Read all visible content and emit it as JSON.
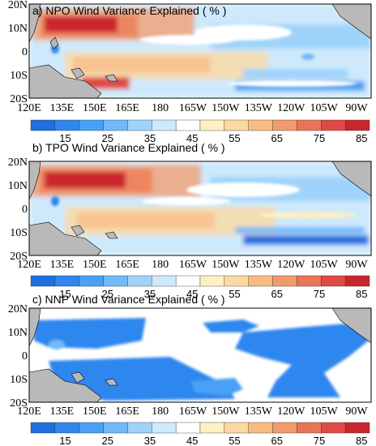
{
  "figure": {
    "colorbar": {
      "colors": [
        "#1e6fe0",
        "#2f86ef",
        "#4aa0f5",
        "#71b9f8",
        "#9fd3fa",
        "#cfe9fc",
        "#ffffff",
        "#fdf0c2",
        "#fbd9a0",
        "#f8bb82",
        "#f29b6a",
        "#ea7458",
        "#df4a45",
        "#c9252d"
      ],
      "tick_values": [
        "15",
        "25",
        "35",
        "45",
        "55",
        "65",
        "75",
        "85"
      ],
      "range": [
        10,
        90
      ],
      "step": 5
    },
    "lon_ticks": [
      "120E",
      "135E",
      "150E",
      "165E",
      "180",
      "165W",
      "150W",
      "135W",
      "120W",
      "105W",
      "90W"
    ],
    "lat_ticks": [
      "20N",
      "10N",
      "0",
      "10S",
      "20S"
    ],
    "land_color": "#b9b9b9"
  },
  "chart_data": [
    {
      "type": "heatmap",
      "title": "a) NPO Wind Variance Explained ( % )",
      "x_range": [
        "120E",
        "80W"
      ],
      "y_range": [
        "20S",
        "20N"
      ],
      "regions": [
        {
          "name": "northwest",
          "lon": [
            "125E",
            "175W"
          ],
          "lat": [
            "7N",
            "18N"
          ],
          "value": 80
        },
        {
          "name": "north-central",
          "lon": [
            "175W",
            "130W"
          ],
          "lat": [
            "10N",
            "17N"
          ],
          "value": 45
        },
        {
          "name": "equatorial-west",
          "lon": [
            "140E",
            "160W"
          ],
          "lat": [
            "3S",
            "10S"
          ],
          "value": 72
        },
        {
          "name": "equatorial-band",
          "lon": [
            "160W",
            "90W"
          ],
          "lat": [
            "2N",
            "8S"
          ],
          "value": 40
        },
        {
          "name": "southeast",
          "lon": [
            "150W",
            "85W"
          ],
          "lat": [
            "10S",
            "18S"
          ],
          "value": 30
        }
      ]
    },
    {
      "type": "heatmap",
      "title": "b) TPO Wind Variance Explained ( % )",
      "x_range": [
        "120E",
        "80W"
      ],
      "y_range": [
        "20S",
        "20N"
      ],
      "regions": [
        {
          "name": "northwest",
          "lon": [
            "125E",
            "175W"
          ],
          "lat": [
            "7N",
            "18N"
          ],
          "value": 82
        },
        {
          "name": "north-central",
          "lon": [
            "175W",
            "130W"
          ],
          "lat": [
            "10N",
            "17N"
          ],
          "value": 45
        },
        {
          "name": "equatorial-west",
          "lon": [
            "140E",
            "165W"
          ],
          "lat": [
            "3S",
            "10S"
          ],
          "value": 75
        },
        {
          "name": "equatorial-band",
          "lon": [
            "165W",
            "90W"
          ],
          "lat": [
            "2N",
            "8S"
          ],
          "value": 45
        },
        {
          "name": "southeast",
          "lon": [
            "150W",
            "85W"
          ],
          "lat": [
            "12S",
            "18S"
          ],
          "value": 15
        }
      ]
    },
    {
      "type": "heatmap",
      "title": "c) NNP Wind Variance Explained ( % )",
      "x_range": [
        "120E",
        "80W"
      ],
      "y_range": [
        "20S",
        "20N"
      ],
      "regions": [
        {
          "name": "northwest",
          "lon": [
            "125E",
            "170E"
          ],
          "lat": [
            "5N",
            "18N"
          ],
          "value": 20
        },
        {
          "name": "southwest",
          "lon": [
            "130E",
            "165W"
          ],
          "lat": [
            "5S",
            "18S"
          ],
          "value": 20
        },
        {
          "name": "east-north",
          "lon": [
            "160W",
            "90W"
          ],
          "lat": [
            "3N",
            "17N"
          ],
          "value": 20
        },
        {
          "name": "east-south",
          "lon": [
            "140W",
            "80W"
          ],
          "lat": [
            "3S",
            "15S"
          ],
          "value": 20
        }
      ]
    }
  ]
}
